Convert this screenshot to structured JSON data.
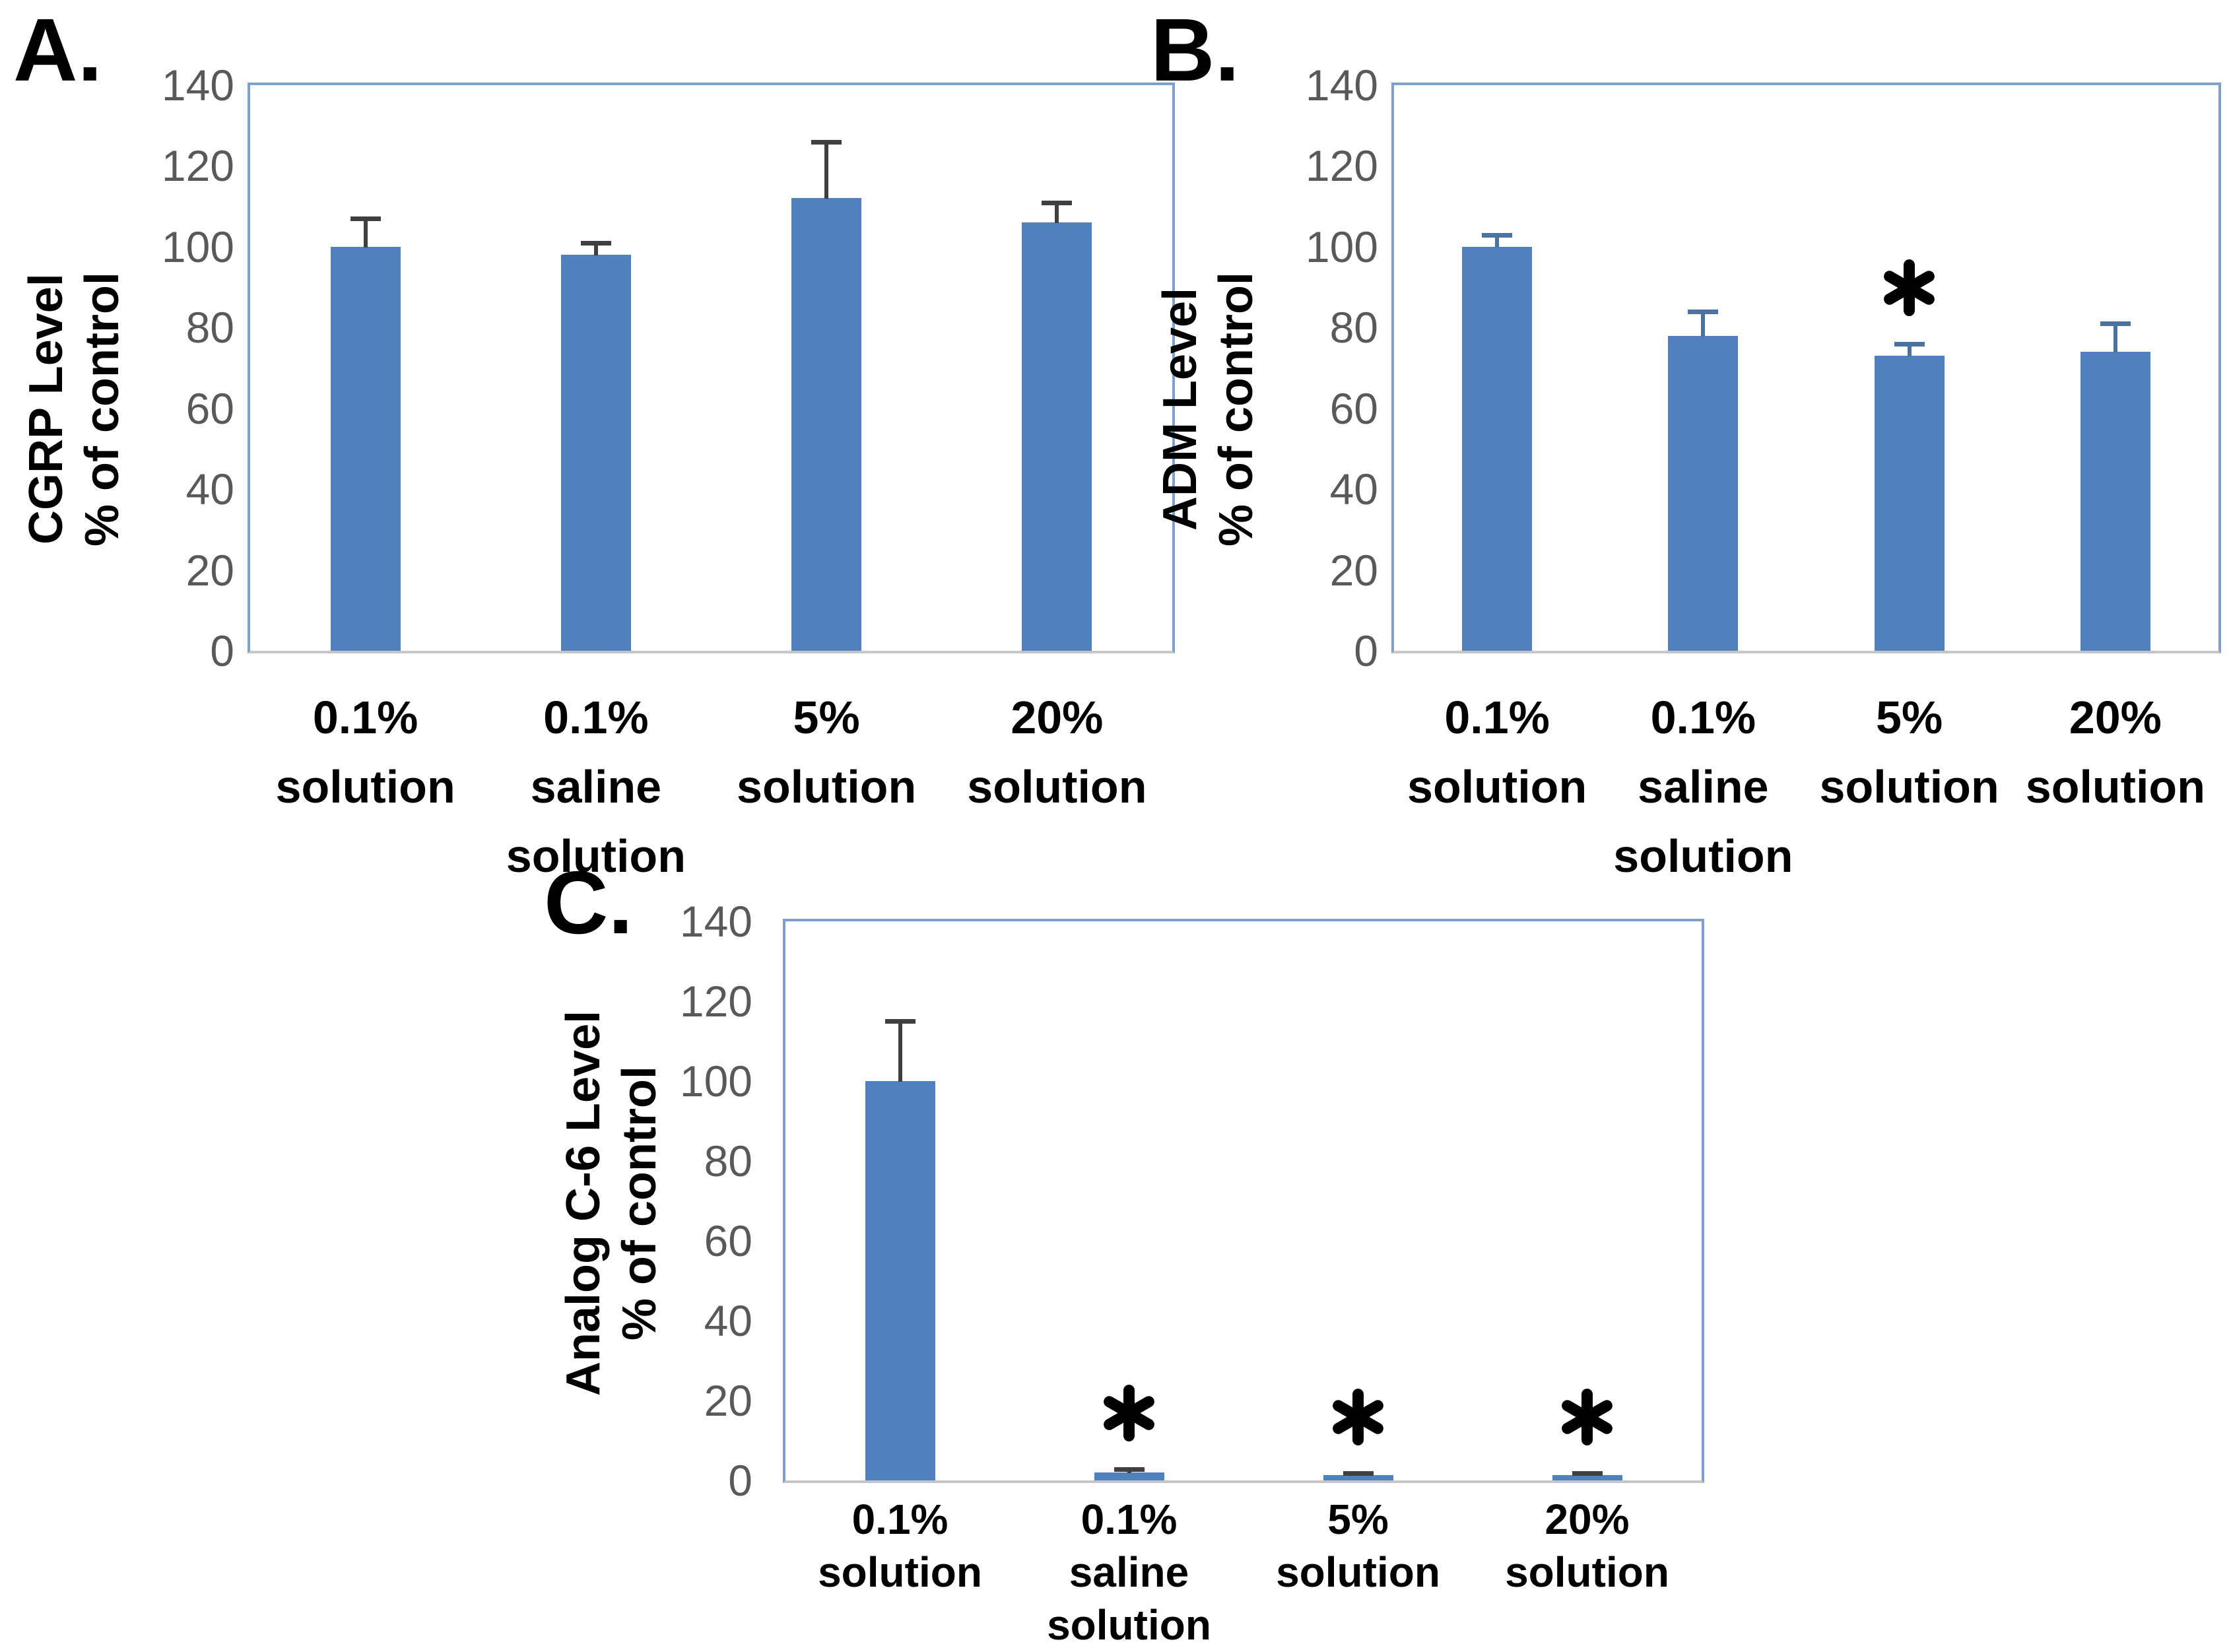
{
  "figure": {
    "background": "#ffffff",
    "significance_symbol": "*",
    "colors": {
      "bar": "#4E81BD",
      "plot_border": "#7DA1CC",
      "axis_line": "#C6C6C6",
      "tick_text": "#595959",
      "label_text": "#000000",
      "asterisk": "#000000"
    }
  },
  "chart_data": [
    {
      "type": "bar",
      "panel_label": "A.",
      "title": "",
      "xlabel": "",
      "ylabel": "CGRP Level % of control",
      "ylabel_lines": [
        "CGRP Level",
        "% of control"
      ],
      "ylim": [
        0,
        140
      ],
      "yticks": [
        0,
        20,
        40,
        60,
        80,
        100,
        120,
        140
      ],
      "grid": false,
      "legend": false,
      "categories": [
        "0.1% solution",
        "0.1% saline solution",
        "5% solution",
        "20% solution"
      ],
      "category_lines": [
        [
          "0.1%",
          "solution"
        ],
        [
          "0.1%",
          "saline",
          "solution"
        ],
        [
          "5%",
          "solution"
        ],
        [
          "20%",
          "solution"
        ]
      ],
      "values": [
        100,
        98,
        112,
        106
      ],
      "error_plus": [
        7,
        3,
        14,
        5
      ],
      "significance": [
        "",
        "",
        "",
        ""
      ],
      "error_color": "#3F3F3F"
    },
    {
      "type": "bar",
      "panel_label": "B.",
      "title": "",
      "xlabel": "",
      "ylabel": "ADM Level % of control",
      "ylabel_lines": [
        "ADM Level",
        "% of control"
      ],
      "ylim": [
        0,
        140
      ],
      "yticks": [
        0,
        20,
        40,
        60,
        80,
        100,
        120,
        140
      ],
      "grid": false,
      "legend": false,
      "categories": [
        "0.1% solution",
        "0.1% saline solution",
        "5% solution",
        "20% solution"
      ],
      "category_lines": [
        [
          "0.1%",
          "solution"
        ],
        [
          "0.1%",
          "saline",
          "solution"
        ],
        [
          "5%",
          "solution"
        ],
        [
          "20%",
          "solution"
        ]
      ],
      "values": [
        100,
        78,
        73,
        74
      ],
      "error_plus": [
        3,
        6,
        3,
        7
      ],
      "significance": [
        "",
        "",
        "*",
        ""
      ],
      "error_color": "#4C72A0"
    },
    {
      "type": "bar",
      "panel_label": "C.",
      "title": "",
      "xlabel": "",
      "ylabel": "Analog C-6 Level % of control",
      "ylabel_lines": [
        "Analog C-6 Level",
        "% of control"
      ],
      "ylim": [
        0,
        140
      ],
      "yticks": [
        0,
        20,
        40,
        60,
        80,
        100,
        120,
        140
      ],
      "grid": false,
      "legend": false,
      "categories": [
        "0.1% solution",
        "0.1% saline solution",
        "5% solution",
        "20% solution"
      ],
      "category_lines": [
        [
          "0.1%",
          "solution"
        ],
        [
          "0.1%",
          "saline",
          "solution"
        ],
        [
          "5%",
          "solution"
        ],
        [
          "20%",
          "solution"
        ]
      ],
      "values": [
        100,
        2,
        1.3,
        1.3
      ],
      "error_plus": [
        15,
        0.8,
        0.6,
        0.6
      ],
      "significance": [
        "",
        "*",
        "*",
        "*"
      ],
      "error_color": "#3F3F3F"
    }
  ]
}
